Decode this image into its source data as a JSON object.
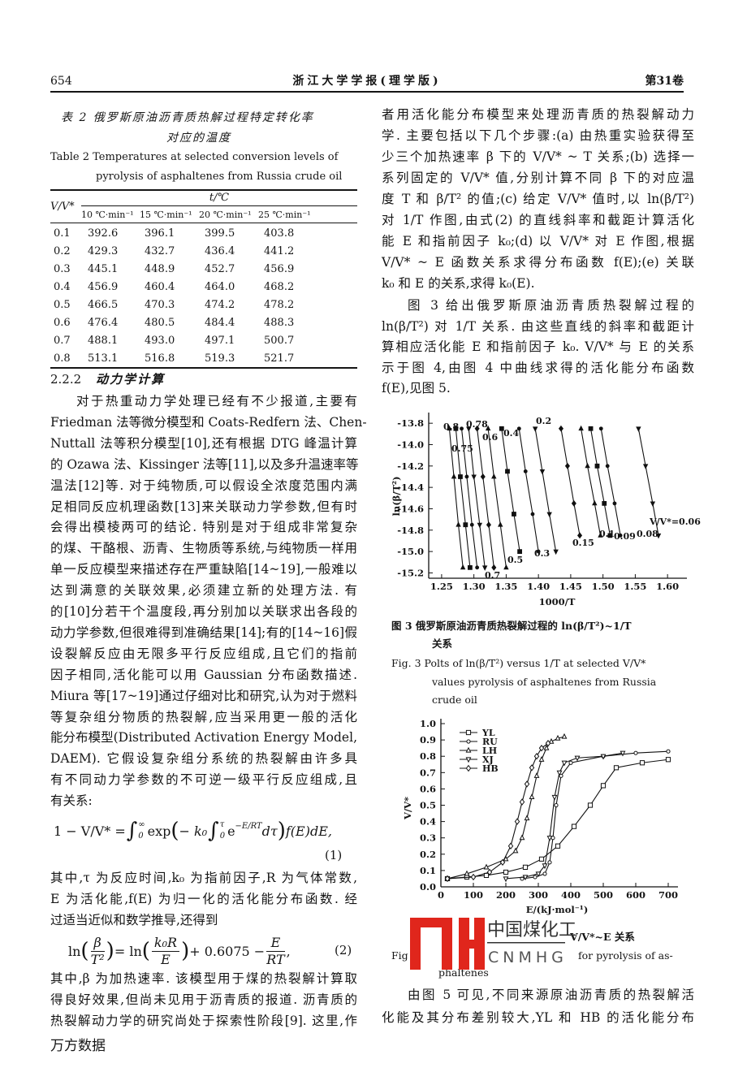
{
  "header": {
    "page": "654",
    "journal": "浙江大学学报(理学版)",
    "volume": "第31卷"
  },
  "table": {
    "caption_cn": [
      "表 2  俄罗斯原油沥青质热解过程特定转化率",
      "对应的温度"
    ],
    "caption_en": [
      "Table 2  Temperatures at selected conversion levels of",
      "pyrolysis of asphaltenes from Russia crude oil"
    ],
    "row_header": "V/V*",
    "group_header": "t/℃",
    "columns": [
      "10 ℃·min⁻¹",
      "15 ℃·min⁻¹",
      "20 ℃·min⁻¹",
      "25 ℃·min⁻¹"
    ],
    "rows": [
      [
        "0.1",
        "392.6",
        "396.1",
        "399.5",
        "403.8"
      ],
      [
        "0.2",
        "429.3",
        "432.7",
        "436.4",
        "441.2"
      ],
      [
        "0.3",
        "445.1",
        "448.9",
        "452.7",
        "456.9"
      ],
      [
        "0.4",
        "456.9",
        "460.4",
        "464.0",
        "468.2"
      ],
      [
        "0.5",
        "466.5",
        "470.3",
        "474.2",
        "478.2"
      ],
      [
        "0.6",
        "476.4",
        "480.5",
        "484.4",
        "488.3"
      ],
      [
        "0.7",
        "488.1",
        "493.0",
        "497.1",
        "500.7"
      ],
      [
        "0.8",
        "513.1",
        "516.8",
        "519.3",
        "521.7"
      ]
    ]
  },
  "section": {
    "number": "2.2.2",
    "title": "动力学计算"
  },
  "left": {
    "p1": [
      "对于热重动力学处理已经有不少报道,主要有",
      "Friedman 法等微分模型和 Coats-Redfern 法、Chen-",
      "Nuttall 法等积分模型[10],还有根据 DTG 峰温计算",
      "的 Ozawa 法、Kissinger 法等[11],以及多升温速率等",
      "温法[12]等. 对于纯物质,可以假设全浓度范围内满",
      "足相同反应机理函数[13]来关联动力学参数,但有时",
      "会得出模棱两可的结论. 特别是对于组成非常复杂",
      "的煤、干酪根、沥青、生物质等系统,与纯物质一样用",
      "单一反应模型来描述存在严重缺陷[14~19],一般难以",
      "达到满意的关联效果,必须建立新的处理方法. 有",
      "的[10]分若干个温度段,再分别加以关联求出各段的",
      "动力学参数,但很难得到准确结果[14];有的[14~16]假",
      "设裂解反应由无限多平行反应组成,且它们的指前",
      "因子相同,活化能可以用 Gaussian 分布函数描述.",
      "Miura 等[17~19]通过仔细对比和研究,认为对于燃料",
      "等复杂组分物质的热裂解,应当采用更一般的活化",
      "能分布模型(Distributed Activation Energy Model,",
      "DAEM). 它假设复杂组分系统的热裂解由许多具",
      "有不同动力学参数的不可逆一级平行反应组成,且",
      "有关系:"
    ],
    "eq1": [
      "1 − V/V* = ",
      "∫",
      "∞",
      "0",
      "exp",
      "(",
      "− k₀",
      "∫",
      "τ",
      "0",
      "e",
      "−E/RT",
      "dτ",
      ")",
      " f(E)dE,"
    ],
    "eq1_no": "(1)",
    "p2": [
      "其中,τ 为反应时间,k₀ 为指前因子,R 为气体常数,",
      "E 为活化能,f(E) 为归一化的活化能分布函数. 经",
      "过适当近似和数学推导,还得到"
    ],
    "eq2": [
      "ln",
      "(",
      "β",
      "T²",
      ")",
      " = ln",
      "(",
      "k₀R",
      "E",
      ")",
      " + 0.6075 − ",
      "E",
      "RT",
      ","
    ],
    "eq2_no": "(2)",
    "p3": [
      "其中,β 为加热速率. 该模型用于煤的热裂解计算取",
      "得良好效果,但尚未见用于沥青质的报道. 沥青质的",
      "热裂解动力学的研究尚处于探索性阶段[9]. 这里,作"
    ]
  },
  "right": {
    "p1": [
      "者用活化能分布模型来处理沥青质的热裂解动力",
      "学. 主要包括以下几个步骤:(a) 由热重实验获得至",
      "少三个加热速率 β 下的 V/V* ~ T 关系;(b) 选择一",
      "系列固定的 V/V* 值,分别计算不同 β 下的对应温",
      "度 T 和 β/T² 的值;(c) 给定 V/V* 值时,以 ln(β/T²)",
      "对 1/T 作图,由式(2) 的直线斜率和截距计算活化",
      "能 E 和指前因子 k₀;(d) 以 V/V* 对 E 作图,根据",
      "V/V* ~ E 函数关系求得分布函数 f(E);(e) 关联",
      "k₀ 和 E 的关系,求得 k₀(E)."
    ],
    "p2": [
      "图 3 给出俄罗斯原油沥青质热裂解过程的",
      "ln(β/T²) 对 1/T 关系. 由这些直线的斜率和截距计",
      "算相应活化能 E 和指前因子 k₀. V/V* 与 E 的关系",
      "示于图 4,由图 4 中曲线求得的活化能分布函数",
      "f(E),见图 5."
    ],
    "p3": [
      "由图 5 可见,不同来源原油沥青质的热裂解活",
      "化能及其分布差别较大,YL 和 HB 的活化能分布"
    ]
  },
  "figure3": {
    "type": "line",
    "xlabel": "1000/T",
    "ylabel": "ln(β/T²)",
    "color": "#111111",
    "xlim": [
      1.23,
      1.63
    ],
    "ylim": [
      -15.25,
      -13.7
    ],
    "xticks": [
      1.25,
      {
        "value": 1.3,
        "label": "1.30"
      },
      1.35,
      {
        "value": 1.4,
        "label": "1.40"
      },
      1.45,
      {
        "value": 1.5,
        "label": "1.50"
      },
      1.55,
      {
        "value": 1.6,
        "label": "1.60"
      }
    ],
    "yticks": [
      -13.8,
      {
        "value": -14,
        "label": "-14.0"
      },
      -14.2,
      -14.4,
      -14.6,
      -14.8,
      {
        "value": -15,
        "label": "-15.0"
      },
      -15.2
    ],
    "series": [
      {
        "name": "0.8",
        "x": [
          1.262,
          1.269,
          1.276,
          1.283
        ],
        "values": [
          -13.85,
          -14.3,
          -14.75,
          -15.15
        ]
      },
      {
        "name": "0.78",
        "x": [
          1.272,
          1.279,
          1.287,
          1.294
        ],
        "values": [
          -13.85,
          -14.3,
          -14.75,
          -15.15
        ]
      },
      {
        "name": "0.75",
        "x": [
          1.281,
          1.289,
          1.297,
          1.305
        ],
        "values": [
          -13.85,
          -14.3,
          -14.75,
          -15.15
        ]
      },
      {
        "name": "0.7",
        "x": [
          1.292,
          1.3,
          1.309,
          1.317
        ],
        "values": [
          -13.85,
          -14.3,
          -14.75,
          -15.15
        ]
      },
      {
        "name": "0.6",
        "x": [
          1.305,
          1.314,
          1.323,
          1.331
        ],
        "values": [
          -13.85,
          -14.3,
          -14.75,
          -15.15
        ]
      },
      {
        "name": "0.5",
        "x": [
          1.322,
          1.331,
          1.341,
          1.35
        ],
        "values": [
          -13.85,
          -14.3,
          -14.75,
          -15.15
        ]
      },
      {
        "name": "0.4",
        "x": [
          1.343,
          1.352,
          1.362,
          1.371
        ],
        "values": [
          -13.85,
          -14.25,
          -14.65,
          -15.0
        ]
      },
      {
        "name": "0.3",
        "x": [
          1.37,
          1.38,
          1.391,
          1.4
        ],
        "values": [
          -13.85,
          -14.25,
          -14.65,
          -15.0
        ]
      },
      {
        "name": "0.2",
        "x": [
          1.395,
          1.406,
          1.417,
          1.427
        ],
        "values": [
          -13.85,
          -14.25,
          -14.65,
          -15.0
        ]
      },
      {
        "name": "0.15",
        "x": [
          1.435,
          1.445,
          1.455,
          1.464
        ],
        "values": [
          -13.85,
          -14.2,
          -14.55,
          -14.85
        ]
      },
      {
        "name": "0.1",
        "x": [
          1.466,
          1.476,
          1.487,
          1.496
        ],
        "values": [
          -13.85,
          -14.2,
          -14.55,
          -14.85
        ]
      },
      {
        "name": "0.09",
        "x": [
          1.481,
          1.491,
          1.502,
          1.511
        ],
        "values": [
          -13.85,
          -14.2,
          -14.55,
          -14.85
        ]
      },
      {
        "name": "0.08",
        "x": [
          1.497,
          1.507,
          1.518,
          1.527
        ],
        "values": [
          -13.85,
          -14.2,
          -14.55,
          -14.85
        ]
      },
      {
        "name": "V/V*=0.06",
        "x": [
          1.555,
          1.566,
          1.577,
          1.586
        ],
        "values": [
          -13.85,
          -14.2,
          -14.55,
          -14.85
        ]
      }
    ],
    "caption_cn": [
      "图 3  俄罗斯原油沥青质热裂解过程的 ln(β/T²)~1/T",
      "关系"
    ],
    "caption_en": [
      "Fig. 3  Polts of ln(β/T²) versus 1/T at selected V/V*",
      "values pyrolysis of asphaltenes from Russia",
      "crude oil"
    ]
  },
  "figure5": {
    "type": "line",
    "xlabel": "E/(kJ·mol⁻¹)",
    "ylabel": "V/V*",
    "color": "#111111",
    "xlim": [
      0,
      730
    ],
    "ylim": [
      0,
      1.03
    ],
    "xticks": [
      0,
      100,
      200,
      300,
      400,
      500,
      600,
      700
    ],
    "yticks": [
      {
        "value": 0,
        "label": "0.0"
      },
      0.1,
      0.2,
      0.3,
      0.4,
      0.5,
      0.6,
      0.7,
      0.8,
      0.9,
      {
        "value": 1,
        "label": "1.0"
      }
    ],
    "series": [
      {
        "name": "YL",
        "x": [
          20,
          80,
          140,
          200,
          260,
          310,
          360,
          410,
          460,
          500,
          540,
          620,
          700
        ],
        "values": [
          0.05,
          0.06,
          0.07,
          0.09,
          0.12,
          0.17,
          0.25,
          0.37,
          0.5,
          0.62,
          0.73,
          0.76,
          0.78
        ]
      },
      {
        "name": "RU",
        "x": [
          250,
          290,
          320,
          335,
          345,
          355,
          370,
          400,
          500,
          600,
          700
        ],
        "values": [
          0.05,
          0.06,
          0.08,
          0.15,
          0.3,
          0.5,
          0.68,
          0.76,
          0.8,
          0.82,
          0.83
        ]
      },
      {
        "name": "LH",
        "x": [
          20,
          80,
          140,
          200,
          230,
          250,
          265,
          280,
          295,
          310,
          325,
          340,
          360,
          380
        ],
        "values": [
          0.05,
          0.08,
          0.12,
          0.17,
          0.22,
          0.3,
          0.42,
          0.55,
          0.68,
          0.78,
          0.85,
          0.89,
          0.91,
          0.92
        ]
      },
      {
        "name": "XJ",
        "x": [
          200,
          260,
          300,
          320,
          335,
          350,
          365,
          380,
          420,
          500,
          560
        ],
        "values": [
          0.05,
          0.06,
          0.08,
          0.13,
          0.3,
          0.55,
          0.7,
          0.76,
          0.79,
          0.8,
          0.82
        ]
      },
      {
        "name": "HB",
        "x": [
          20,
          100,
          150,
          190,
          215,
          235,
          250,
          265,
          280,
          295,
          310,
          330
        ],
        "values": [
          0.05,
          0.06,
          0.09,
          0.15,
          0.25,
          0.4,
          0.52,
          0.63,
          0.73,
          0.8,
          0.85,
          0.88
        ]
      }
    ],
    "caption_cn": [
      "V/V*~E 关系"
    ],
    "caption_en": [
      "Fig",
      "for pyrolysis of as-",
      "phaltenes"
    ]
  },
  "watermark": {
    "cn": "中国煤化工",
    "en": "CNMHG"
  },
  "footer": "万方数据"
}
